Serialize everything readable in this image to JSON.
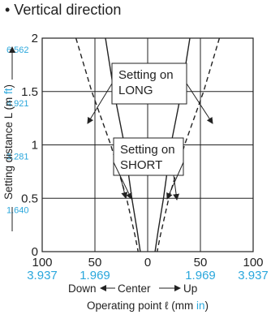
{
  "title": "• Vertical direction",
  "chart_data": {
    "type": "line",
    "title": "• Vertical direction",
    "ylabel_parts": [
      "Setting distance L (m ",
      "ft",
      ")"
    ],
    "xlabel_parts": [
      "Operating point ℓ (mm ",
      "in",
      ")"
    ],
    "direction_labels": {
      "left": "Down",
      "center": "Center",
      "right": "Up"
    },
    "xlim": [
      -100,
      100
    ],
    "ylim": [
      0,
      2
    ],
    "x_ticks_mm": [
      "100",
      "50",
      "0",
      "50",
      "100"
    ],
    "x_ticks_in": [
      "3.937",
      "1.969",
      "",
      "1.969",
      "3.937"
    ],
    "y_ticks_m": [
      "0",
      "0.5",
      "1",
      "1.5",
      "2"
    ],
    "y_ticks_ft": [
      "",
      "1.640",
      "3.281",
      "4.921",
      "6.562"
    ],
    "grid": true,
    "series": [
      {
        "name": "Setting on LONG",
        "style": "solid",
        "left": [
          [
            -40,
            2
          ],
          [
            -32,
            1.5
          ],
          [
            -22,
            1
          ],
          [
            -15,
            0.5
          ],
          [
            -10,
            0.2
          ],
          [
            -7,
            0
          ]
        ],
        "right": [
          [
            40,
            2
          ],
          [
            32,
            1.5
          ],
          [
            22,
            1
          ],
          [
            15,
            0.5
          ],
          [
            10,
            0.2
          ],
          [
            7,
            0
          ]
        ]
      },
      {
        "name": "Setting on SHORT",
        "style": "dashed",
        "left": [
          [
            -68,
            2
          ],
          [
            -53,
            1.5
          ],
          [
            -35,
            1
          ],
          [
            -20,
            0.5
          ],
          [
            -12,
            0.15
          ],
          [
            -9,
            0
          ]
        ],
        "right": [
          [
            68,
            2
          ],
          [
            53,
            1.5
          ],
          [
            35,
            1
          ],
          [
            20,
            0.5
          ],
          [
            12,
            0.15
          ],
          [
            9,
            0
          ]
        ]
      }
    ],
    "annotations": [
      {
        "lines": [
          "Setting on",
          "LONG"
        ]
      },
      {
        "lines": [
          "Setting on",
          "SHORT"
        ]
      }
    ]
  }
}
